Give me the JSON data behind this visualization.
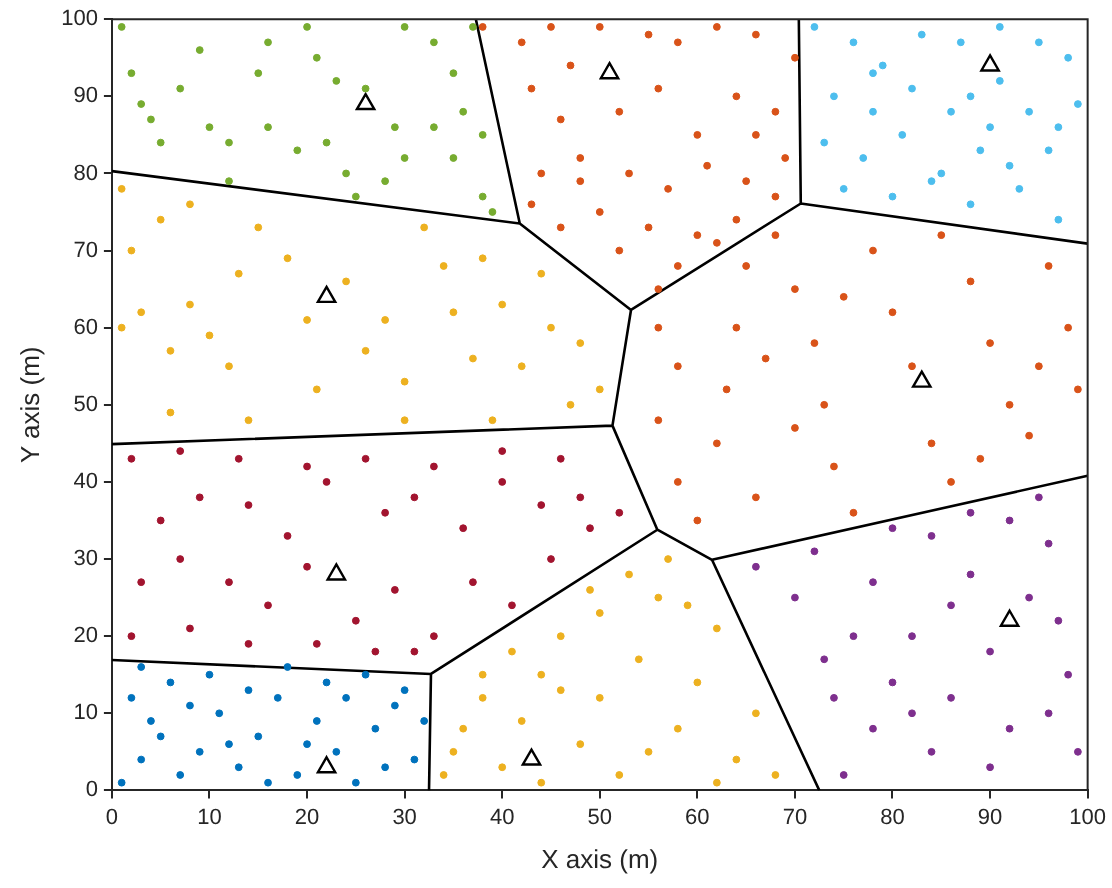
{
  "chart_data": {
    "type": "scatter",
    "xlabel": "X axis (m)",
    "ylabel": "Y axis (m)",
    "xlim": [
      0,
      100
    ],
    "ylim": [
      0,
      100
    ],
    "xticks": [
      0,
      10,
      20,
      30,
      40,
      50,
      60,
      70,
      80,
      90,
      100
    ],
    "yticks": [
      0,
      10,
      20,
      30,
      40,
      50,
      60,
      70,
      80,
      90,
      100
    ],
    "grid": false,
    "legend": false,
    "marker": "circle",
    "series": [
      {
        "type": "scatter",
        "color": "#77ac30",
        "x": [
          1,
          2,
          3,
          7,
          15,
          16,
          20,
          21,
          26,
          30,
          33,
          35,
          37,
          5,
          10,
          12,
          16,
          19,
          22,
          24,
          28,
          30,
          33,
          35,
          38,
          38,
          39,
          36,
          4,
          12,
          25,
          29,
          9,
          23
        ],
        "values": [
          99,
          93,
          89,
          91,
          93,
          97,
          99,
          95,
          91,
          99,
          97,
          93,
          99,
          84,
          86,
          84,
          86,
          83,
          84,
          80,
          79,
          82,
          86,
          82,
          85,
          77,
          75,
          88,
          87,
          79,
          77,
          86,
          96,
          92
        ]
      },
      {
        "type": "scatter",
        "color": "#d95319",
        "x": [
          38,
          42,
          45,
          47,
          50,
          55,
          58,
          62,
          66,
          70,
          43,
          46,
          52,
          56,
          60,
          64,
          68,
          44,
          48,
          53,
          57,
          61,
          65,
          69,
          43,
          46,
          50,
          55,
          60,
          64,
          68,
          52,
          58,
          62,
          56,
          48,
          66
        ],
        "values": [
          99,
          97,
          99,
          94,
          99,
          98,
          97,
          99,
          98,
          95,
          91,
          87,
          88,
          91,
          85,
          90,
          88,
          80,
          82,
          80,
          78,
          81,
          79,
          82,
          76,
          73,
          75,
          73,
          72,
          74,
          77,
          70,
          68,
          71,
          65,
          79,
          85
        ]
      },
      {
        "type": "scatter",
        "color": "#4dbeee",
        "x": [
          72,
          76,
          79,
          83,
          87,
          91,
          95,
          98,
          74,
          78,
          82,
          86,
          90,
          94,
          97,
          73,
          77,
          81,
          85,
          89,
          92,
          96,
          99,
          75,
          80,
          84,
          88,
          93,
          97,
          88,
          91,
          78
        ],
        "values": [
          99,
          97,
          94,
          98,
          97,
          99,
          97,
          95,
          90,
          88,
          91,
          88,
          86,
          88,
          86,
          84,
          82,
          85,
          80,
          83,
          81,
          83,
          89,
          78,
          77,
          79,
          76,
          78,
          74,
          90,
          92,
          93
        ]
      },
      {
        "type": "scatter",
        "color": "#edb120",
        "x": [
          1,
          2,
          5,
          8,
          1,
          3,
          6,
          8,
          10,
          12,
          13,
          15,
          18,
          20,
          21,
          24,
          26,
          28,
          30,
          32,
          34,
          35,
          37,
          38,
          40,
          42,
          44,
          45,
          47,
          48,
          50,
          6,
          14,
          30,
          39
        ],
        "values": [
          78,
          70,
          74,
          76,
          60,
          62,
          57,
          63,
          59,
          55,
          67,
          73,
          69,
          61,
          52,
          66,
          57,
          61,
          53,
          73,
          68,
          62,
          56,
          69,
          63,
          55,
          67,
          60,
          50,
          58,
          52,
          49,
          48,
          48,
          48
        ]
      },
      {
        "type": "scatter",
        "color": "#a2142f",
        "x": [
          2,
          7,
          13,
          20,
          26,
          33,
          40,
          46,
          5,
          9,
          14,
          18,
          22,
          28,
          31,
          36,
          40,
          44,
          48,
          52,
          3,
          7,
          12,
          16,
          20,
          25,
          29,
          33,
          37,
          41,
          45,
          49,
          2,
          8,
          14,
          21,
          27,
          31
        ],
        "values": [
          43,
          44,
          43,
          42,
          43,
          42,
          44,
          43,
          35,
          38,
          37,
          33,
          40,
          36,
          38,
          34,
          40,
          37,
          38,
          36,
          27,
          30,
          27,
          24,
          29,
          22,
          26,
          20,
          27,
          24,
          30,
          34,
          20,
          21,
          19,
          19,
          18,
          18
        ]
      },
      {
        "type": "scatter",
        "color": "#0072bd",
        "x": [
          1,
          3,
          5,
          7,
          9,
          11,
          13,
          15,
          17,
          19,
          21,
          23,
          25,
          27,
          29,
          31,
          2,
          6,
          10,
          14,
          18,
          22,
          26,
          30,
          4,
          8,
          12,
          16,
          20,
          24,
          28,
          32,
          3
        ],
        "values": [
          1,
          4,
          7,
          2,
          5,
          10,
          3,
          7,
          12,
          2,
          9,
          5,
          1,
          8,
          11,
          4,
          12,
          14,
          15,
          13,
          16,
          14,
          15,
          13,
          9,
          11,
          6,
          1,
          6,
          12,
          3,
          9,
          16
        ]
      },
      {
        "type": "scatter",
        "color": "#edb120",
        "x": [
          34,
          36,
          38,
          35,
          40,
          42,
          44,
          46,
          48,
          50,
          52,
          54,
          56,
          58,
          60,
          62,
          64,
          66,
          68,
          53,
          57,
          50,
          46,
          41,
          55,
          62,
          44,
          59,
          38,
          49
        ],
        "values": [
          2,
          8,
          12,
          5,
          3,
          9,
          15,
          20,
          6,
          12,
          2,
          17,
          25,
          8,
          14,
          21,
          4,
          10,
          2,
          28,
          30,
          23,
          13,
          18,
          5,
          1,
          1,
          24,
          15,
          26
        ]
      },
      {
        "type": "scatter",
        "color": "#d95319",
        "x": [
          56,
          58,
          56,
          58,
          60,
          62,
          63,
          64,
          65,
          68,
          70,
          72,
          73,
          74,
          76,
          78,
          80,
          82,
          84,
          86,
          88,
          90,
          92,
          94,
          96,
          98,
          99,
          66,
          70,
          85,
          75,
          89,
          95,
          67
        ],
        "values": [
          60,
          55,
          48,
          40,
          35,
          45,
          52,
          60,
          68,
          72,
          65,
          58,
          50,
          42,
          36,
          70,
          62,
          55,
          45,
          40,
          66,
          58,
          50,
          46,
          68,
          60,
          52,
          38,
          47,
          72,
          64,
          43,
          55,
          56
        ]
      },
      {
        "type": "scatter",
        "color": "#7e2f8e",
        "x": [
          75,
          78,
          80,
          82,
          84,
          86,
          88,
          90,
          92,
          94,
          96,
          98,
          99,
          74,
          76,
          70,
          66,
          72,
          78,
          84,
          88,
          92,
          95,
          97,
          80,
          86,
          90,
          73,
          82,
          96
        ],
        "values": [
          2,
          8,
          14,
          20,
          5,
          12,
          28,
          18,
          8,
          25,
          32,
          15,
          5,
          12,
          20,
          25,
          29,
          31,
          27,
          33,
          36,
          35,
          38,
          22,
          34,
          24,
          3,
          17,
          10,
          10
        ]
      },
      {
        "type": "line",
        "color": "#000000",
        "marker": "none",
        "line_style": "solid",
        "x": [
          0,
          41.8,
          null,
          37.3,
          41.8,
          53.2,
          70.6,
          70.4,
          null,
          70.6,
          100,
          null,
          53.2,
          51.3,
          0,
          null,
          51.3,
          55.9,
          61.5,
          100,
          null,
          61.5,
          72.5,
          null,
          55.9,
          32.7,
          0,
          null,
          32.7,
          32.5
        ],
        "values": [
          80.3,
          73.5,
          null,
          100,
          73.5,
          62.3,
          76.1,
          100,
          null,
          76.1,
          70.9,
          null,
          62.3,
          47.3,
          44.9,
          null,
          47.3,
          33.8,
          29.9,
          40.8,
          null,
          29.9,
          0,
          null,
          33.8,
          15.1,
          16.9,
          null,
          15.1,
          0
        ]
      },
      {
        "type": "scatter",
        "color": "#000000",
        "marker": "triangle",
        "x": [
          26,
          51,
          90,
          22,
          83,
          23,
          92,
          22,
          43
        ],
        "values": [
          89,
          93,
          94,
          64,
          53,
          28,
          22,
          3,
          4
        ]
      }
    ]
  }
}
